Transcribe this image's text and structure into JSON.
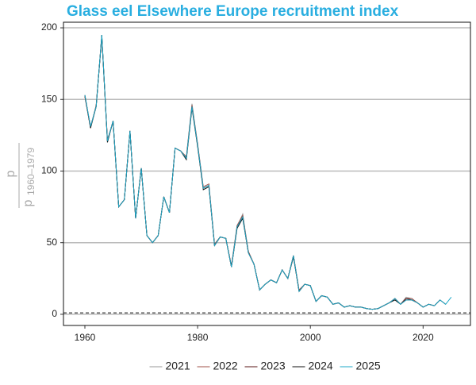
{
  "chart_data": {
    "type": "line",
    "title": "Glass eel Elsewhere Europe recruitment index",
    "y_label": {
      "numerator": "p",
      "denominator": "p",
      "subscript": "1960–1979"
    },
    "x": [
      1960,
      1961,
      1962,
      1963,
      1964,
      1965,
      1966,
      1967,
      1968,
      1969,
      1970,
      1971,
      1972,
      1973,
      1974,
      1975,
      1976,
      1977,
      1978,
      1979,
      1980,
      1981,
      1982,
      1983,
      1984,
      1985,
      1986,
      1987,
      1988,
      1989,
      1990,
      1991,
      1992,
      1993,
      1994,
      1995,
      1996,
      1997,
      1998,
      1999,
      2000,
      2001,
      2002,
      2003,
      2004,
      2005,
      2006,
      2007,
      2008,
      2009,
      2010,
      2011,
      2012,
      2013,
      2014,
      2015,
      2016,
      2017,
      2018,
      2019,
      2020,
      2021,
      2022,
      2023,
      2024,
      2025
    ],
    "series": [
      {
        "name": "2021",
        "color": "#9a9a9a",
        "values": [
          153,
          131,
          145,
          195,
          121,
          135,
          75,
          80,
          128,
          67,
          102,
          55,
          50,
          55,
          82,
          71,
          116,
          114,
          109,
          147,
          118,
          88,
          90,
          48,
          54,
          53,
          33,
          61,
          70,
          43,
          35,
          17,
          21,
          24,
          22,
          31,
          25,
          41,
          16,
          21,
          20,
          9,
          13,
          12,
          7,
          8,
          5,
          6,
          5,
          5,
          4,
          3.5,
          4,
          6,
          8,
          11,
          7,
          12,
          11,
          8,
          5,
          7,
          null,
          null,
          null,
          null
        ]
      },
      {
        "name": "2022",
        "color": "#a0524a",
        "values": [
          152,
          130,
          146,
          194,
          122,
          134,
          75,
          80,
          128,
          67,
          102,
          55,
          50,
          55,
          82,
          71,
          116,
          114,
          110,
          146,
          119,
          89,
          91,
          49,
          54,
          53,
          34,
          62,
          69,
          44,
          35,
          17,
          21,
          24,
          22,
          31,
          25,
          41,
          17,
          21,
          20,
          9,
          13,
          12,
          7,
          8,
          5,
          6,
          5,
          5,
          4,
          3.5,
          4,
          6,
          8,
          11,
          7,
          11,
          11,
          8,
          5,
          7,
          6,
          null,
          null,
          null
        ]
      },
      {
        "name": "2023",
        "color": "#5a1414",
        "values": [
          152,
          131,
          145,
          194,
          121,
          135,
          75,
          80,
          128,
          67,
          102,
          55,
          50,
          55,
          82,
          71,
          116,
          114,
          109,
          145,
          118,
          88,
          90,
          48,
          54,
          53,
          33,
          61,
          68,
          43,
          35,
          17,
          21,
          24,
          22,
          31,
          25,
          41,
          16,
          21,
          20,
          9,
          13,
          12,
          7,
          8,
          5,
          6,
          5,
          5,
          4,
          3.5,
          4,
          6,
          8,
          11,
          7,
          11,
          10,
          8,
          5,
          7,
          6,
          10,
          null,
          null
        ]
      },
      {
        "name": "2024",
        "color": "#111111",
        "values": [
          153,
          130,
          145,
          195,
          120,
          135,
          75,
          80,
          128,
          67,
          102,
          55,
          50,
          55,
          82,
          71,
          116,
          114,
          108,
          144,
          117,
          87,
          89,
          48,
          54,
          53,
          33,
          60,
          67,
          43,
          35,
          17,
          21,
          24,
          22,
          31,
          25,
          40,
          16,
          21,
          20,
          9,
          13,
          12,
          7,
          8,
          5,
          6,
          5,
          5,
          4,
          3.5,
          4,
          6,
          8,
          10,
          7,
          10,
          10,
          8,
          5,
          7,
          6,
          10,
          7,
          null
        ]
      },
      {
        "name": "2025",
        "color": "#1fa9c9",
        "values": [
          153,
          131,
          145,
          195,
          121,
          135,
          75,
          80,
          128,
          67,
          102,
          55,
          50,
          55,
          82,
          71,
          116,
          114,
          109,
          145,
          118,
          88,
          90,
          48,
          54,
          53,
          33,
          61,
          68,
          43,
          35,
          17,
          21,
          24,
          22,
          31,
          25,
          41,
          16,
          21,
          20,
          9,
          13,
          12,
          7,
          8,
          5,
          6,
          5,
          5,
          4,
          3.5,
          4,
          6,
          8,
          11,
          7,
          10,
          10,
          8,
          5,
          7,
          6,
          10,
          7,
          12
        ]
      }
    ],
    "hline": 1,
    "xlim": [
      1956.2,
      2028.4
    ],
    "xticks": [
      1960,
      1980,
      2000,
      2020
    ],
    "ylim": [
      -7.8,
      203.9
    ],
    "yticks": [
      0,
      50,
      100,
      150,
      200
    ],
    "grid": true,
    "legend": "bottom"
  }
}
